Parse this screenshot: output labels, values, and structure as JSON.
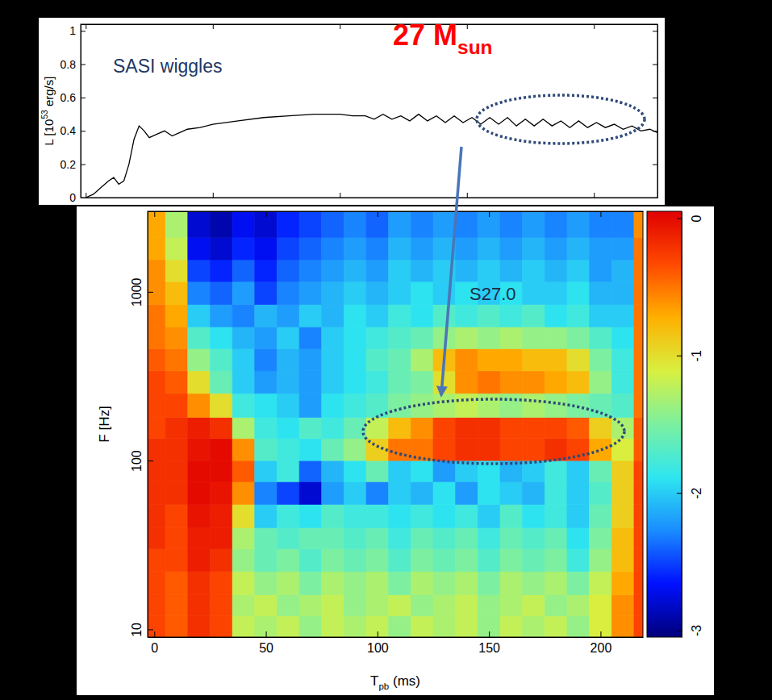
{
  "chart_data": [
    {
      "type": "line",
      "ylabel": {
        "main": "L [10",
        "sup": "53",
        "tail": " erg/s]"
      },
      "annotations": [
        {
          "text": "SASI wiggles"
        },
        {
          "main": "27 M",
          "sub": "sun"
        }
      ],
      "x": [
        0,
        3,
        6,
        9,
        11,
        13,
        15,
        17,
        19,
        21,
        23,
        25,
        28,
        31,
        34,
        37,
        40,
        45,
        50,
        60,
        70,
        80,
        90,
        100,
        105,
        110,
        113.5,
        117,
        120.5,
        124,
        127.5,
        131,
        134.5,
        138,
        141.5,
        145,
        148.5,
        152,
        155.5,
        159,
        162.5,
        166,
        169.5,
        173,
        176.5,
        180,
        183.5,
        187,
        190.5,
        194,
        197.5,
        201,
        204.5,
        208,
        211.5,
        215,
        218.5,
        222,
        225
      ],
      "series": [
        {
          "color": "#000000",
          "values": [
            0,
            0.02,
            0.06,
            0.1,
            0.12,
            0.08,
            0.1,
            0.2,
            0.35,
            0.43,
            0.4,
            0.36,
            0.38,
            0.4,
            0.37,
            0.39,
            0.41,
            0.42,
            0.44,
            0.46,
            0.48,
            0.49,
            0.5,
            0.5,
            0.49,
            0.49,
            0.47,
            0.5,
            0.47,
            0.49,
            0.46,
            0.5,
            0.46,
            0.49,
            0.45,
            0.49,
            0.45,
            0.48,
            0.44,
            0.48,
            0.44,
            0.48,
            0.43,
            0.47,
            0.43,
            0.47,
            0.43,
            0.46,
            0.42,
            0.46,
            0.42,
            0.45,
            0.42,
            0.44,
            0.41,
            0.43,
            0.4,
            0.41,
            0.39
          ]
        }
      ],
      "xlim": [
        -2,
        225
      ],
      "xticks": [
        0,
        50,
        100,
        150,
        200
      ],
      "ylim": [
        0,
        1.04
      ],
      "yticks": [
        0,
        0.2,
        0.4,
        0.6,
        0.8,
        1
      ],
      "tick_labels": "y"
    },
    {
      "type": "heatmap",
      "xlabel": {
        "main": "T",
        "sub": "pb",
        "tail": " (ms)"
      },
      "ylabel": "F [Hz]",
      "annotations": [
        {
          "text": "S27.0"
        }
      ],
      "log": "y",
      "xlim": [
        -3,
        219
      ],
      "xticks": [
        0,
        50,
        100,
        150,
        200
      ],
      "ylim": [
        9,
        3000
      ],
      "yticks": [
        10,
        100,
        1000
      ],
      "x_edges": [
        -3,
        5,
        15,
        25,
        35,
        45,
        55,
        65,
        75,
        85,
        95,
        105,
        115,
        125,
        135,
        145,
        155,
        165,
        175,
        185,
        195,
        205,
        215,
        219
      ],
      "y_edges": [
        9,
        12,
        16,
        22,
        30,
        40,
        55,
        75,
        100,
        135,
        180,
        250,
        340,
        460,
        620,
        840,
        1150,
        1550,
        2100,
        3000
      ],
      "cells": [
        [
          -0.3,
          -0.4,
          -0.2,
          -0.3,
          -1.2,
          -1.3,
          -1.2,
          -1.4,
          -1.2,
          -1.3,
          -1.2,
          -1.4,
          -1.2,
          -1.3,
          -1.2,
          -1.4,
          -1.2,
          -1.3,
          -1.2,
          -1.4,
          -1.1,
          -0.6,
          -0.3
        ],
        [
          -0.3,
          -0.4,
          -0.2,
          -0.3,
          -1.3,
          -1.2,
          -1.4,
          -1.3,
          -1.2,
          -1.4,
          -1.3,
          -1.2,
          -1.4,
          -1.3,
          -1.2,
          -1.4,
          -1.3,
          -1.2,
          -1.4,
          -1.3,
          -1.1,
          -0.6,
          -0.3
        ],
        [
          -0.3,
          -0.4,
          -0.2,
          -0.3,
          -1.2,
          -1.4,
          -1.3,
          -1.5,
          -1.3,
          -1.4,
          -1.3,
          -1.5,
          -1.3,
          -1.4,
          -1.3,
          -1.5,
          -1.3,
          -1.4,
          -1.3,
          -1.5,
          -1.2,
          -0.7,
          -0.3
        ],
        [
          -0.3,
          -0.3,
          -0.1,
          -0.2,
          -1.4,
          -1.6,
          -1.5,
          -1.7,
          -1.5,
          -1.6,
          -1.5,
          -1.7,
          -1.5,
          -1.6,
          -1.5,
          -1.7,
          -1.5,
          -1.6,
          -1.5,
          -1.8,
          -1.4,
          -0.8,
          -0.3
        ],
        [
          -0.2,
          -0.3,
          -0.1,
          -0.1,
          -1.3,
          -1.6,
          -1.7,
          -1.6,
          -1.6,
          -1.7,
          -1.6,
          -1.8,
          -1.6,
          -1.7,
          -1.6,
          -1.8,
          -1.6,
          -1.7,
          -1.6,
          -1.9,
          -1.5,
          -0.8,
          -0.3
        ],
        [
          -0.2,
          -0.3,
          -0.05,
          -0.1,
          -1.0,
          -2.0,
          -1.8,
          -1.9,
          -1.7,
          -1.8,
          -1.8,
          -1.9,
          -1.8,
          -1.9,
          -1.8,
          -2.0,
          -1.7,
          -1.9,
          -1.8,
          -2.0,
          -1.6,
          -0.9,
          -0.3
        ],
        [
          -0.2,
          -0.2,
          0,
          -0.05,
          -0.6,
          -2.3,
          -2.5,
          -2.8,
          -2.2,
          -2.0,
          -2.3,
          -2.0,
          -2.1,
          -1.9,
          -2.2,
          -1.9,
          -2.0,
          -2.1,
          -1.8,
          -2.0,
          -1.7,
          -0.9,
          -0.3
        ],
        [
          -0.2,
          -0.2,
          0,
          0,
          -0.4,
          -2.0,
          -1.8,
          -2.4,
          -2.1,
          -1.9,
          -1.6,
          -2.0,
          -1.9,
          -2.2,
          -2.0,
          -1.9,
          -2.1,
          -2.0,
          -1.8,
          -2.0,
          -1.6,
          -0.9,
          -0.3
        ],
        [
          -0.2,
          -0.2,
          -0.05,
          0,
          -0.6,
          -1.7,
          -1.8,
          -1.9,
          -1.6,
          -1.4,
          -0.9,
          -0.5,
          -0.5,
          -0.3,
          -0.2,
          -0.2,
          -0.3,
          -0.3,
          -0.2,
          -0.3,
          -0.7,
          -1.1,
          -0.4
        ],
        [
          -0.3,
          -0.2,
          -0.1,
          -0.2,
          -1.3,
          -1.8,
          -1.9,
          -1.7,
          -1.8,
          -1.6,
          -1.2,
          -0.8,
          -0.6,
          -0.3,
          -0.2,
          -0.2,
          -0.3,
          -0.3,
          -0.3,
          -0.4,
          -0.9,
          -1.3,
          -0.4
        ],
        [
          -0.3,
          -0.3,
          -0.6,
          -1.0,
          -1.8,
          -1.9,
          -2.0,
          -2.2,
          -1.9,
          -1.8,
          -1.7,
          -1.5,
          -1.4,
          -1.3,
          -1.2,
          -1.3,
          -1.4,
          -1.3,
          -1.4,
          -1.5,
          -1.6,
          -1.7,
          -0.5
        ],
        [
          -0.3,
          -0.4,
          -1.0,
          -1.6,
          -2.0,
          -2.2,
          -2.1,
          -2.2,
          -2.0,
          -1.9,
          -1.8,
          -1.6,
          -1.5,
          -1.0,
          -0.6,
          -0.5,
          -0.6,
          -0.6,
          -0.7,
          -0.8,
          -1.4,
          -1.8,
          -0.5
        ],
        [
          -0.4,
          -0.5,
          -1.4,
          -1.7,
          -2.0,
          -2.3,
          -2.1,
          -2.2,
          -2.0,
          -1.9,
          -1.7,
          -1.6,
          -1.3,
          -0.8,
          -0.6,
          -0.7,
          -0.7,
          -0.8,
          -0.8,
          -1.0,
          -1.5,
          -1.8,
          -0.5
        ],
        [
          -0.5,
          -0.6,
          -1.7,
          -1.9,
          -2.1,
          -2.2,
          -2.0,
          -2.3,
          -2.0,
          -1.9,
          -1.8,
          -1.7,
          -1.6,
          -1.4,
          -1.3,
          -1.4,
          -1.3,
          -1.4,
          -1.4,
          -1.5,
          -1.7,
          -1.9,
          -0.5
        ],
        [
          -0.5,
          -0.7,
          -2.0,
          -2.2,
          -2.3,
          -2.1,
          -2.2,
          -2.0,
          -2.1,
          -1.9,
          -2.0,
          -1.8,
          -1.9,
          -1.7,
          -1.8,
          -1.7,
          -1.8,
          -1.7,
          -1.9,
          -1.8,
          -2.0,
          -2.0,
          -0.5
        ],
        [
          -0.6,
          -0.8,
          -2.3,
          -2.4,
          -2.2,
          -2.5,
          -2.3,
          -2.2,
          -2.1,
          -2.0,
          -2.1,
          -2.0,
          -1.9,
          -2.0,
          -1.9,
          -2.0,
          -1.9,
          -2.0,
          -2.0,
          -1.9,
          -2.1,
          -2.1,
          -0.5
        ],
        [
          -0.6,
          -1.0,
          -2.5,
          -2.6,
          -2.4,
          -2.6,
          -2.4,
          -2.3,
          -2.2,
          -2.1,
          -2.2,
          -2.0,
          -2.1,
          -2.0,
          -2.1,
          -2.0,
          -2.1,
          -2.0,
          -2.1,
          -2.0,
          -2.2,
          -2.1,
          -0.5
        ],
        [
          -0.7,
          -1.2,
          -2.7,
          -2.8,
          -2.6,
          -2.7,
          -2.5,
          -2.4,
          -2.3,
          -2.2,
          -2.3,
          -2.1,
          -2.2,
          -2.1,
          -2.2,
          -2.1,
          -2.2,
          -2.1,
          -2.2,
          -2.1,
          -2.2,
          -2.2,
          -0.5
        ],
        [
          -0.7,
          -1.3,
          -2.8,
          -2.9,
          -2.7,
          -2.8,
          -2.6,
          -2.5,
          -2.4,
          -2.3,
          -2.4,
          -2.2,
          -2.3,
          -2.2,
          -2.3,
          -2.2,
          -2.3,
          -2.2,
          -2.3,
          -2.2,
          -2.3,
          -2.3,
          -0.6
        ]
      ],
      "colorbar_range": [
        -3.05,
        0.05
      ],
      "colorbar_ticks": [
        0,
        -1,
        -2,
        -3
      ]
    }
  ]
}
